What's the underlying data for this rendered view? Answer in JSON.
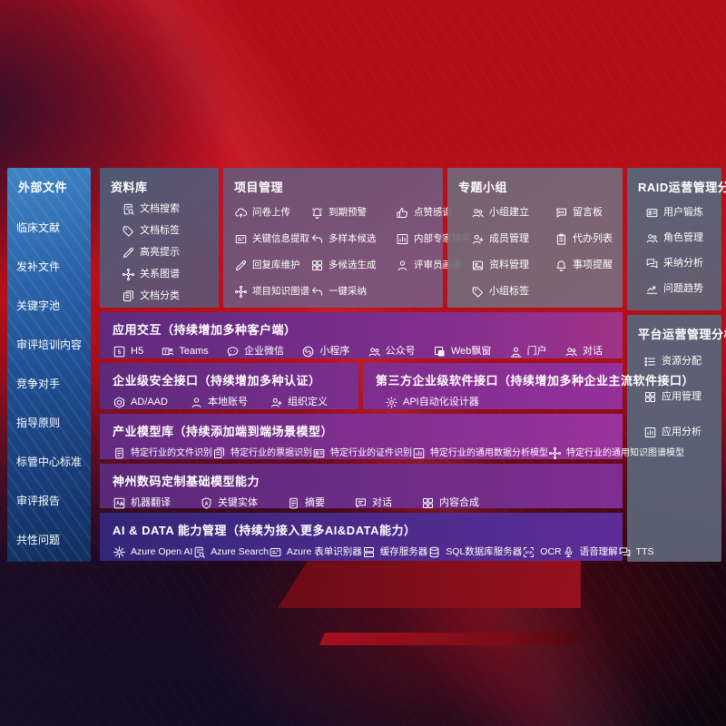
{
  "colors": {
    "background_red": "#b60f19",
    "sidebar_blue": "#2b66ab",
    "band_purple": "#7c2e8e",
    "aidata_indigo": "#45298a",
    "panel_gray": "#5c6a7e",
    "text": "#ffffff"
  },
  "icon_map": {
    "doc-search": "i-doc-search",
    "doc-tag": "i-tag",
    "highlight-pen": "i-pen",
    "relation-graph": "i-graph",
    "doc-classify": "i-docs",
    "cloud-upload": "i-cloud-up",
    "alarm": "i-alarm",
    "thumbs-up": "i-thumb",
    "key-extract": "i-card",
    "multi-sample-arrow": "i-arrow-back",
    "expert-rank": "i-rank",
    "reply-pen": "i-pen",
    "multi-generate": "i-grid4",
    "reviewer-person": "i-person",
    "knowledge-graph": "i-graph",
    "one-click-adopt": "i-arrow-back",
    "group-people": "i-people",
    "bbs": "i-bbs",
    "member-add": "i-person-add",
    "todo-clipboard": "i-clipboard",
    "material-photo": "i-photo",
    "bell": "i-bell",
    "group-tag": "i-tag",
    "user-id-card": "i-id-card",
    "role-people": "i-people",
    "adopt-chat": "i-chat2",
    "trend-chart": "i-trend",
    "resource-list": "i-list",
    "app-grid": "i-grid4",
    "app-analysis": "i-rank",
    "h5": "i-h5",
    "teams": "i-teams",
    "wechat-work": "i-wechat",
    "miniprogram": "i-mini",
    "official-account": "i-people",
    "web-window": "i-window",
    "portal-person": "i-portal",
    "dialog-people": "i-people",
    "ad-shield": "i-hex",
    "local-account": "i-person",
    "org-define": "i-person-add",
    "api-gear": "i-gear",
    "file-recog": "i-doc",
    "receipt-recog": "i-docs",
    "id-recog": "i-id-card",
    "data-analysis-model": "i-rank",
    "knowledge-graph-model": "i-graph",
    "machine-translate": "i-translate",
    "key-entity-shield": "i-shield-a",
    "summary-doc": "i-doc",
    "dialog-chat": "i-chat-lines",
    "content-compose": "i-grid4",
    "openai": "i-flower",
    "azure-search": "i-doc-search",
    "form-recognizer": "i-card",
    "cache-server": "i-server",
    "sql-db": "i-db",
    "ocr": "i-ocr",
    "speech": "i-mic",
    "tts": "i-chat2"
  },
  "sidebar": {
    "title": "外部文件",
    "items": [
      "临床文献",
      "发补文件",
      "关键字池",
      "审评培训内容",
      "竞争对手",
      "指导原则",
      "标管中心标准",
      "审评报告",
      "共性问题"
    ]
  },
  "panels": {
    "library": {
      "title": "资料库",
      "items": [
        {
          "icon": "doc-search",
          "label": "文档搜索"
        },
        {
          "icon": "doc-tag",
          "label": "文档标签"
        },
        {
          "icon": "highlight-pen",
          "label": "高亮提示"
        },
        {
          "icon": "relation-graph",
          "label": "关系图谱"
        },
        {
          "icon": "doc-classify",
          "label": "文档分类"
        }
      ]
    },
    "project": {
      "title": "项目管理",
      "items": [
        {
          "icon": "cloud-upload",
          "label": "问卷上传"
        },
        {
          "icon": "alarm",
          "label": "到期预警"
        },
        {
          "icon": "thumbs-up",
          "label": "点赞感谢"
        },
        {
          "icon": "key-extract",
          "label": "关键信息提取"
        },
        {
          "icon": "multi-sample-arrow",
          "label": "多样本候选"
        },
        {
          "icon": "expert-rank",
          "label": "内部专家排名"
        },
        {
          "icon": "reply-pen",
          "label": "回复库维护"
        },
        {
          "icon": "multi-generate",
          "label": "多候选生成"
        },
        {
          "icon": "reviewer-person",
          "label": "评审员画像"
        },
        {
          "icon": "knowledge-graph",
          "label": "项目知识图谱"
        },
        {
          "icon": "one-click-adopt",
          "label": "一键采纳"
        }
      ]
    },
    "group": {
      "title": "专题小组",
      "items": [
        {
          "icon": "group-people",
          "label": "小组建立"
        },
        {
          "icon": "bbs",
          "label": "留言板"
        },
        {
          "icon": "member-add",
          "label": "成员管理"
        },
        {
          "icon": "todo-clipboard",
          "label": "代办列表"
        },
        {
          "icon": "material-photo",
          "label": "资料管理"
        },
        {
          "icon": "bell",
          "label": "事项提醒"
        },
        {
          "icon": "group-tag",
          "label": "小组标签"
        }
      ]
    },
    "raid": {
      "title": "RAID运营管理分析",
      "items": [
        {
          "icon": "user-id-card",
          "label": "用户锻炼"
        },
        {
          "icon": "role-people",
          "label": "角色管理"
        },
        {
          "icon": "adopt-chat",
          "label": "采纳分析"
        },
        {
          "icon": "trend-chart",
          "label": "问题趋势"
        }
      ]
    },
    "platform": {
      "title": "平台运营管理分析",
      "items": [
        {
          "icon": "resource-list",
          "label": "资源分配"
        },
        {
          "icon": "app-grid",
          "label": "应用管理"
        },
        {
          "icon": "app-analysis",
          "label": "应用分析"
        }
      ]
    }
  },
  "bands": {
    "interact": {
      "title": "应用交互（持续增加多种客户端）",
      "items": [
        {
          "icon": "h5",
          "label": "H5"
        },
        {
          "icon": "teams",
          "label": "Teams"
        },
        {
          "icon": "wechat-work",
          "label": "企业微信"
        },
        {
          "icon": "miniprogram",
          "label": "小程序"
        },
        {
          "icon": "official-account",
          "label": "公众号"
        },
        {
          "icon": "web-window",
          "label": "Web飘窗"
        },
        {
          "icon": "portal-person",
          "label": "门户"
        },
        {
          "icon": "dialog-people",
          "label": "对话"
        }
      ]
    },
    "security": {
      "title": "企业级安全接口（持续增加多种认证）",
      "items": [
        {
          "icon": "ad-shield",
          "label": "AD/AAD"
        },
        {
          "icon": "local-account",
          "label": "本地账号"
        },
        {
          "icon": "org-define",
          "label": "组织定义"
        }
      ]
    },
    "third_party": {
      "title": "第三方企业级软件接口（持续增加多种企业主流软件接口）",
      "items": [
        {
          "icon": "api-gear",
          "label": "API自动化设计器"
        }
      ]
    },
    "industry": {
      "title": "产业模型库（持续添加端到端场景模型）",
      "items": [
        {
          "icon": "file-recog",
          "label": "特定行业的文件识别"
        },
        {
          "icon": "receipt-recog",
          "label": "特定行业的票据识别"
        },
        {
          "icon": "id-recog",
          "label": "特定行业的证件识别"
        },
        {
          "icon": "data-analysis-model",
          "label": "特定行业的通用数据分析模型"
        },
        {
          "icon": "knowledge-graph-model",
          "label": "特定行业的通用知识图谱模型"
        }
      ]
    },
    "digital": {
      "title": "神州数码定制基础模型能力",
      "items": [
        {
          "icon": "machine-translate",
          "label": "机器翻译"
        },
        {
          "icon": "key-entity-shield",
          "label": "关键实体"
        },
        {
          "icon": "summary-doc",
          "label": "摘要"
        },
        {
          "icon": "dialog-chat",
          "label": "对话"
        },
        {
          "icon": "content-compose",
          "label": "内容合成"
        }
      ]
    },
    "aidata": {
      "title": "AI & DATA 能力管理（持续为接入更多AI&DATA能力）",
      "items": [
        {
          "icon": "openai",
          "label": "Azure Open AI"
        },
        {
          "icon": "azure-search",
          "label": "Azure Search"
        },
        {
          "icon": "form-recognizer",
          "label": "Azure 表单识别器"
        },
        {
          "icon": "cache-server",
          "label": "缓存服务器"
        },
        {
          "icon": "sql-db",
          "label": "SQL数据库服务器"
        },
        {
          "icon": "ocr",
          "label": "OCR"
        },
        {
          "icon": "speech",
          "label": "语音理解"
        },
        {
          "icon": "tts",
          "label": "TTS"
        }
      ]
    }
  }
}
